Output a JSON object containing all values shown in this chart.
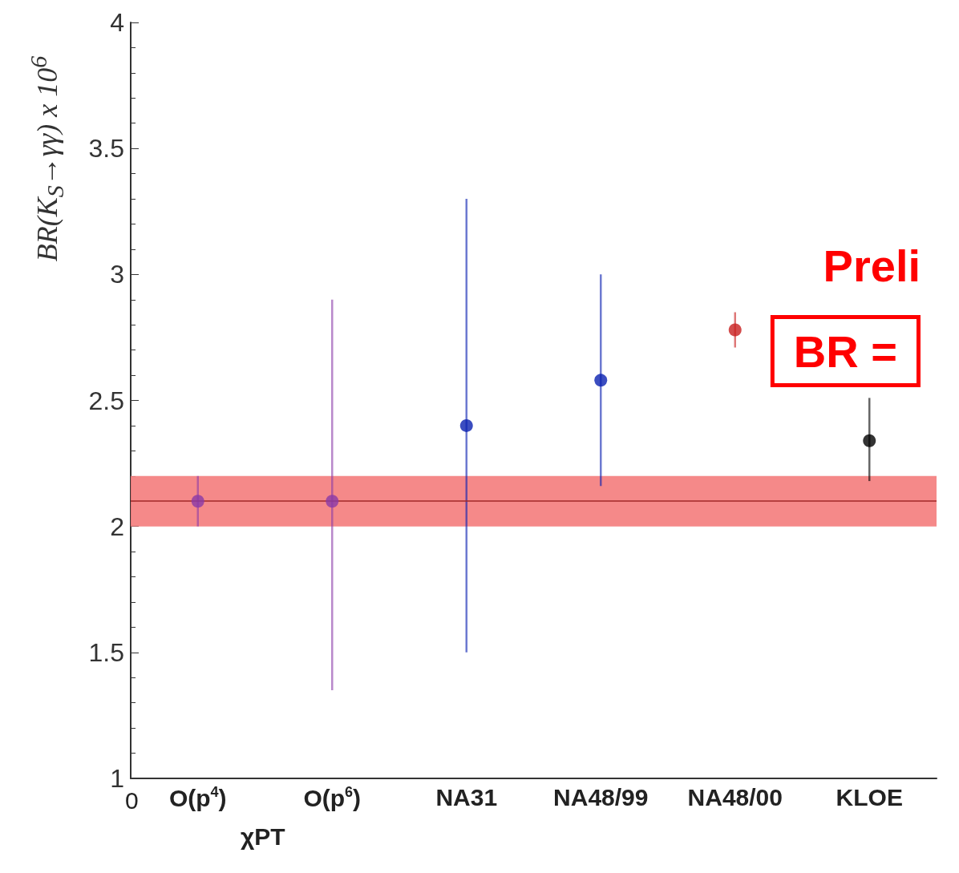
{
  "chart_data": {
    "type": "scatter",
    "ylabel": "BR(K$_{S}$→γγ) x 10$^{6}$",
    "categories": [
      "O(p$^{4}$)",
      "O(p$^{6}$)",
      "NA31",
      "NA48/99",
      "NA48/00",
      "KLOE"
    ],
    "series": [
      {
        "x": [
          "O(p$^{4}$)",
          "O(p$^{6}$)"
        ],
        "values": [
          2.1,
          2.1
        ],
        "errors": [
          [
            2.0,
            2.2
          ],
          [
            1.35,
            2.9
          ]
        ],
        "color": "#8a3aa8"
      },
      {
        "x": [
          "NA31",
          "NA48/99"
        ],
        "values": [
          2.4,
          2.58
        ],
        "errors": [
          [
            1.5,
            3.3
          ],
          [
            2.16,
            3.0
          ]
        ],
        "color": "#0a20b0"
      },
      {
        "x": [
          "NA48/00"
        ],
        "values": [
          2.78
        ],
        "errors": [
          [
            2.71,
            2.85
          ]
        ],
        "color": "#c81e1e"
      },
      {
        "x": [
          "KLOE"
        ],
        "values": [
          2.34
        ],
        "errors": [
          [
            2.18,
            2.51
          ]
        ],
        "color": "#000000"
      }
    ],
    "marker": "circle",
    "ylim": [
      1,
      4
    ],
    "yticks": [
      1,
      1.5,
      2,
      2.5,
      3,
      3.5,
      4
    ],
    "bands": [
      {
        "axis": "y",
        "from": 2.0,
        "to": 2.2,
        "color": "#f47c7c"
      }
    ],
    "ref_lines": [
      {
        "axis": "y",
        "value": 2.1,
        "color": "#a02828"
      }
    ],
    "annotations": [
      "χPT",
      "0",
      "Preli",
      "BR ="
    ]
  }
}
